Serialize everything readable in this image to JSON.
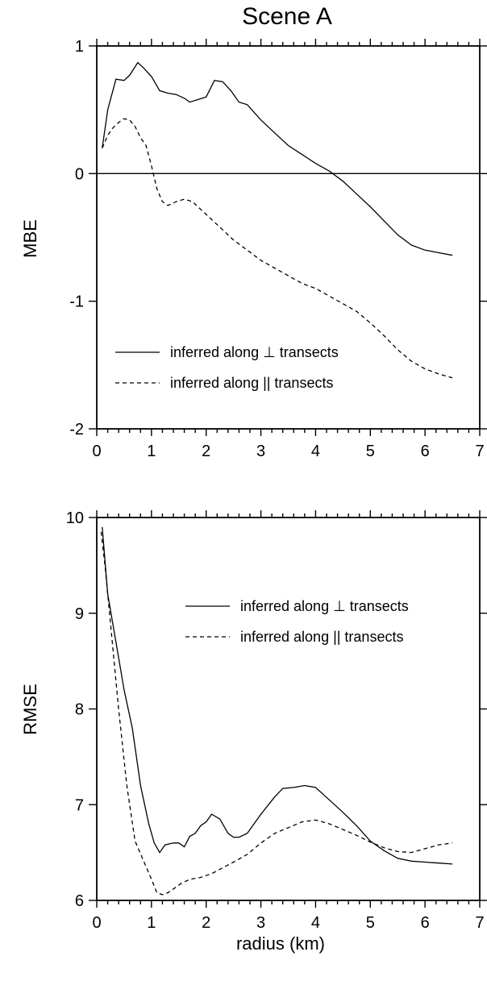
{
  "figure_title": "Scene A",
  "x_axis_label": "radius (km)",
  "chart_data": [
    {
      "type": "line",
      "ylabel": "MBE",
      "xlim": [
        0,
        7
      ],
      "ylim": [
        -2,
        1
      ],
      "x_ticks": [
        "0",
        "1",
        "2",
        "3",
        "4",
        "5",
        "6",
        "7"
      ],
      "y_ticks": [
        {
          "value": 1,
          "label": "1"
        },
        {
          "value": 0,
          "label": "0"
        },
        {
          "value": -1,
          "label": "-1"
        },
        {
          "value": -2,
          "label": "-2"
        }
      ],
      "reference_line": 0,
      "legend": {
        "placement": "lower-left"
      },
      "series": [
        {
          "name": "inferred along ⊥ transects",
          "style": "solid",
          "x": [
            0.1,
            0.2,
            0.35,
            0.5,
            0.6,
            0.75,
            0.85,
            1.0,
            1.15,
            1.3,
            1.45,
            1.6,
            1.7,
            1.85,
            2.0,
            2.15,
            2.3,
            2.45,
            2.6,
            2.75,
            3.0,
            3.25,
            3.5,
            3.75,
            4.0,
            4.25,
            4.5,
            4.75,
            5.0,
            5.25,
            5.5,
            5.75,
            6.0,
            6.25,
            6.5
          ],
          "y": [
            0.2,
            0.5,
            0.74,
            0.73,
            0.77,
            0.87,
            0.83,
            0.76,
            0.65,
            0.63,
            0.62,
            0.59,
            0.56,
            0.58,
            0.6,
            0.73,
            0.72,
            0.65,
            0.56,
            0.54,
            0.42,
            0.32,
            0.22,
            0.15,
            0.08,
            0.02,
            -0.06,
            -0.16,
            -0.26,
            -0.37,
            -0.48,
            -0.56,
            -0.6,
            -0.62,
            -0.64
          ]
        },
        {
          "name": "inferred along || transects",
          "style": "dashed",
          "x": [
            0.1,
            0.2,
            0.3,
            0.4,
            0.5,
            0.6,
            0.7,
            0.8,
            0.9,
            1.0,
            1.1,
            1.2,
            1.3,
            1.45,
            1.6,
            1.75,
            1.9,
            2.05,
            2.25,
            2.5,
            2.75,
            3.0,
            3.25,
            3.5,
            3.75,
            4.0,
            4.25,
            4.5,
            4.75,
            5.0,
            5.25,
            5.5,
            5.75,
            6.0,
            6.25,
            6.5
          ],
          "y": [
            0.2,
            0.3,
            0.36,
            0.4,
            0.43,
            0.42,
            0.37,
            0.28,
            0.22,
            0.06,
            -0.12,
            -0.22,
            -0.25,
            -0.22,
            -0.2,
            -0.22,
            -0.28,
            -0.34,
            -0.42,
            -0.52,
            -0.6,
            -0.68,
            -0.74,
            -0.8,
            -0.86,
            -0.9,
            -0.96,
            -1.02,
            -1.08,
            -1.17,
            -1.27,
            -1.38,
            -1.47,
            -1.53,
            -1.57,
            -1.6
          ]
        }
      ]
    },
    {
      "type": "line",
      "ylabel": "RMSE",
      "xlim": [
        0,
        7
      ],
      "ylim": [
        6,
        10
      ],
      "x_ticks": [
        "0",
        "1",
        "2",
        "3",
        "4",
        "5",
        "6",
        "7"
      ],
      "y_ticks": [
        {
          "value": 10,
          "label": "10"
        },
        {
          "value": 9,
          "label": "9"
        },
        {
          "value": 8,
          "label": "8"
        },
        {
          "value": 7,
          "label": "7"
        },
        {
          "value": 6,
          "label": "6"
        }
      ],
      "legend": {
        "placement": "top-right"
      },
      "series": [
        {
          "name": "inferred along ⊥ transects",
          "style": "solid",
          "x": [
            0.1,
            0.2,
            0.35,
            0.5,
            0.65,
            0.8,
            0.95,
            1.05,
            1.15,
            1.25,
            1.4,
            1.5,
            1.6,
            1.7,
            1.8,
            1.9,
            2.0,
            2.1,
            2.25,
            2.4,
            2.5,
            2.6,
            2.75,
            3.0,
            3.25,
            3.4,
            3.6,
            3.8,
            4.0,
            4.25,
            4.5,
            4.75,
            5.0,
            5.25,
            5.5,
            5.75,
            6.0,
            6.25,
            6.5
          ],
          "y": [
            9.9,
            9.2,
            8.7,
            8.2,
            7.8,
            7.2,
            6.8,
            6.6,
            6.5,
            6.58,
            6.6,
            6.6,
            6.56,
            6.67,
            6.7,
            6.78,
            6.82,
            6.9,
            6.85,
            6.7,
            6.66,
            6.66,
            6.7,
            6.9,
            7.08,
            7.17,
            7.18,
            7.2,
            7.18,
            7.05,
            6.92,
            6.78,
            6.62,
            6.52,
            6.44,
            6.41,
            6.4,
            6.39,
            6.38
          ]
        },
        {
          "name": "inferred along || transects",
          "style": "dashed",
          "x": [
            0.08,
            0.15,
            0.25,
            0.4,
            0.55,
            0.7,
            0.85,
            1.0,
            1.1,
            1.2,
            1.3,
            1.4,
            1.55,
            1.7,
            1.9,
            2.1,
            2.3,
            2.5,
            2.75,
            3.0,
            3.25,
            3.5,
            3.75,
            4.0,
            4.25,
            4.5,
            4.75,
            5.0,
            5.25,
            5.5,
            5.75,
            6.0,
            6.25,
            6.5
          ],
          "y": [
            9.85,
            9.5,
            8.9,
            8.0,
            7.2,
            6.62,
            6.42,
            6.22,
            6.08,
            6.06,
            6.08,
            6.12,
            6.18,
            6.22,
            6.24,
            6.28,
            6.34,
            6.4,
            6.48,
            6.6,
            6.7,
            6.76,
            6.82,
            6.84,
            6.8,
            6.74,
            6.68,
            6.61,
            6.55,
            6.51,
            6.5,
            6.54,
            6.58,
            6.6
          ]
        }
      ]
    }
  ]
}
